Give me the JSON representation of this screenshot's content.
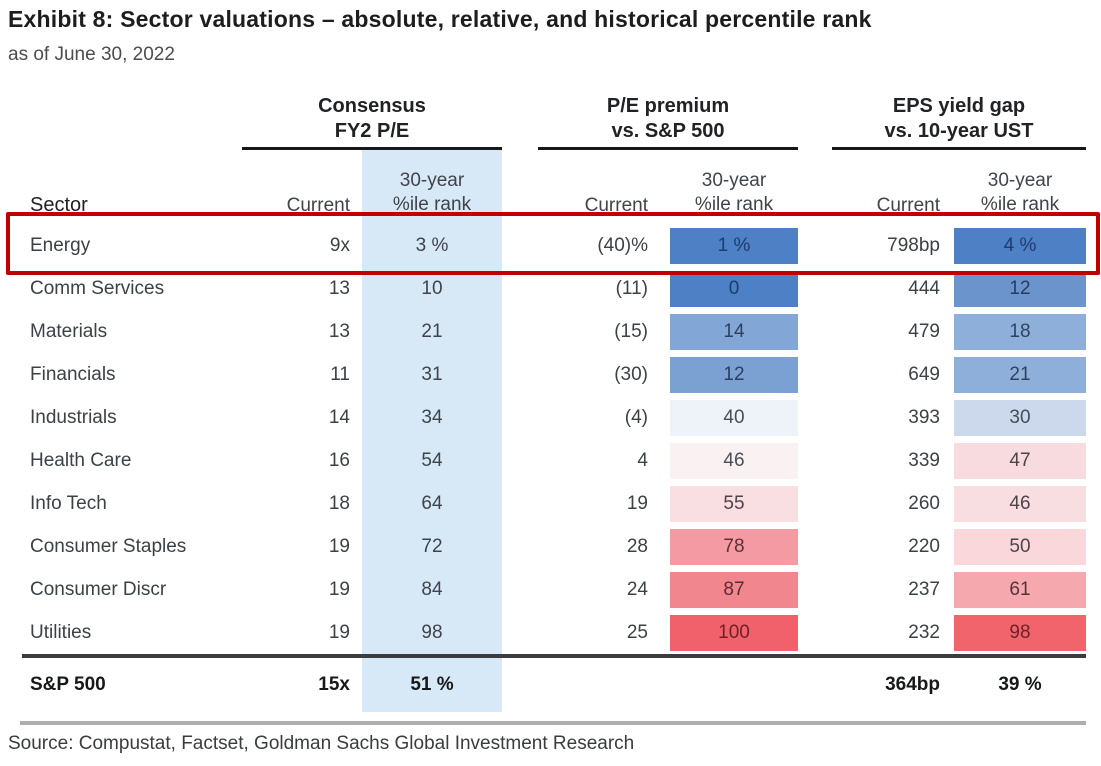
{
  "title": "Exhibit 8: Sector valuations – absolute, relative, and historical percentile rank",
  "subtitle": "as of June 30, 2022",
  "source": "Source: Compustat, Factset, Goldman Sachs Global Investment Research",
  "colors": {
    "band_blue": "#d7e8f7",
    "highlight_red": "#c00000",
    "total_rule": "#3c3c3e",
    "footer_rule": "#aeaeae"
  },
  "table": {
    "sector_header": "Sector",
    "groups": [
      {
        "line1": "Consensus",
        "line2": "FY2 P/E"
      },
      {
        "line1": "P/E premium",
        "line2": "vs. S&P 500"
      },
      {
        "line1": "EPS yield gap",
        "line2": "vs. 10-year UST"
      }
    ],
    "subheaders": {
      "current": "Current",
      "pct_line1": "30-year",
      "pct_line2": "%ile rank"
    },
    "rows": [
      {
        "sector": "Energy",
        "fy2_current": "9x",
        "fy2_pct": "3 %",
        "prem_current": "(40)%",
        "prem_pct": "1 %",
        "prem_bg": "#4d80c4",
        "prem_fg": "#1d3c71",
        "eps_current": "798bp",
        "eps_pct": "4 %",
        "eps_bg": "#4d80c4",
        "eps_fg": "#1d3c71",
        "highlight": true
      },
      {
        "sector": "Comm Services",
        "fy2_current": "13",
        "fy2_pct": "10",
        "prem_current": "(11)",
        "prem_pct": "0",
        "prem_bg": "#4d80c4",
        "prem_fg": "#1d3c71",
        "eps_current": "444",
        "eps_pct": "12",
        "eps_bg": "#6b94cc",
        "eps_fg": "#253d66"
      },
      {
        "sector": "Materials",
        "fy2_current": "13",
        "fy2_pct": "21",
        "prem_current": "(15)",
        "prem_pct": "14",
        "prem_bg": "#82a7d6",
        "prem_fg": "#30415f",
        "eps_current": "479",
        "eps_pct": "18",
        "eps_bg": "#8dafda",
        "eps_fg": "#32425e"
      },
      {
        "sector": "Financials",
        "fy2_current": "11",
        "fy2_pct": "31",
        "prem_current": "(30)",
        "prem_pct": "12",
        "prem_bg": "#7ba1d3",
        "prem_fg": "#2e3f61",
        "eps_current": "649",
        "eps_pct": "21",
        "eps_bg": "#8dafda",
        "eps_fg": "#32425e"
      },
      {
        "sector": "Industrials",
        "fy2_current": "14",
        "fy2_pct": "34",
        "prem_current": "(4)",
        "prem_pct": "40",
        "prem_bg": "#eef2f9",
        "prem_fg": "#4a4f55",
        "eps_current": "393",
        "eps_pct": "30",
        "eps_bg": "#ccd9ed",
        "eps_fg": "#474d56"
      },
      {
        "sector": "Health Care",
        "fy2_current": "16",
        "fy2_pct": "54",
        "prem_current": "4",
        "prem_pct": "46",
        "prem_bg": "#faf1f3",
        "prem_fg": "#4a4f55",
        "eps_current": "339",
        "eps_pct": "47",
        "eps_bg": "#f8dbde",
        "eps_fg": "#4e4449"
      },
      {
        "sector": "Info Tech",
        "fy2_current": "18",
        "fy2_pct": "64",
        "prem_current": "19",
        "prem_pct": "55",
        "prem_bg": "#fadfe2",
        "prem_fg": "#4e4449",
        "eps_current": "260",
        "eps_pct": "46",
        "eps_bg": "#f9dee1",
        "eps_fg": "#4e4449"
      },
      {
        "sector": "Consumer Staples",
        "fy2_current": "19",
        "fy2_pct": "72",
        "prem_current": "28",
        "prem_pct": "78",
        "prem_bg": "#f49aa2",
        "prem_fg": "#5f3038",
        "eps_current": "220",
        "eps_pct": "50",
        "eps_bg": "#f9d7da",
        "eps_fg": "#4e4449"
      },
      {
        "sector": "Consumer Discr",
        "fy2_current": "19",
        "fy2_pct": "84",
        "prem_current": "24",
        "prem_pct": "87",
        "prem_bg": "#f2868f",
        "prem_fg": "#5c2b32",
        "eps_current": "237",
        "eps_pct": "61",
        "eps_bg": "#f5a9af",
        "eps_fg": "#54333a"
      },
      {
        "sector": "Utilities",
        "fy2_current": "19",
        "fy2_pct": "98",
        "prem_current": "25",
        "prem_pct": "100",
        "prem_bg": "#f0616b",
        "prem_fg": "#6e2228",
        "eps_current": "232",
        "eps_pct": "98",
        "eps_bg": "#f1646c",
        "eps_fg": "#6e2228"
      }
    ],
    "total_row": {
      "sector": "S&P 500",
      "fy2_current": "15x",
      "fy2_pct": "51 %",
      "prem_current": "",
      "prem_pct": "",
      "eps_current": "364bp",
      "eps_pct": "39 %"
    }
  },
  "chart_data": {
    "type": "table",
    "title": "Exhibit 8: Sector valuations – absolute, relative, and historical percentile rank",
    "subtitle": "as of June 30, 2022",
    "column_groups": [
      "Consensus FY2 P/E",
      "P/E premium vs. S&P 500",
      "EPS yield gap vs. 10-year UST"
    ],
    "columns": [
      "Sector",
      "FY2 P/E Current",
      "FY2 P/E 30-year %ile rank",
      "P/E premium Current",
      "P/E premium 30-year %ile rank",
      "EPS yield gap Current",
      "EPS yield gap 30-year %ile rank"
    ],
    "rows": [
      [
        "Energy",
        "9x",
        "3 %",
        "(40)%",
        "1 %",
        "798bp",
        "4 %"
      ],
      [
        "Comm Services",
        "13",
        "10",
        "(11)",
        "0",
        "444",
        "12"
      ],
      [
        "Materials",
        "13",
        "21",
        "(15)",
        "14",
        "479",
        "18"
      ],
      [
        "Financials",
        "11",
        "31",
        "(30)",
        "12",
        "649",
        "21"
      ],
      [
        "Industrials",
        "14",
        "34",
        "(4)",
        "40",
        "393",
        "30"
      ],
      [
        "Health Care",
        "16",
        "54",
        "4",
        "46",
        "339",
        "47"
      ],
      [
        "Info Tech",
        "18",
        "64",
        "19",
        "55",
        "260",
        "46"
      ],
      [
        "Consumer Staples",
        "19",
        "72",
        "28",
        "78",
        "220",
        "50"
      ],
      [
        "Consumer Discr",
        "19",
        "84",
        "24",
        "87",
        "237",
        "61"
      ],
      [
        "Utilities",
        "19",
        "98",
        "25",
        "100",
        "232",
        "98"
      ],
      [
        "S&P 500",
        "15x",
        "51 %",
        "",
        "",
        "364bp",
        "39 %"
      ]
    ],
    "annotations": [
      "Energy row outlined with red highlight box",
      "Percentile cells heat-mapped blue (low percentile) to red (high percentile)"
    ],
    "source": "Source: Compustat, Factset, Goldman Sachs Global Investment Research"
  }
}
